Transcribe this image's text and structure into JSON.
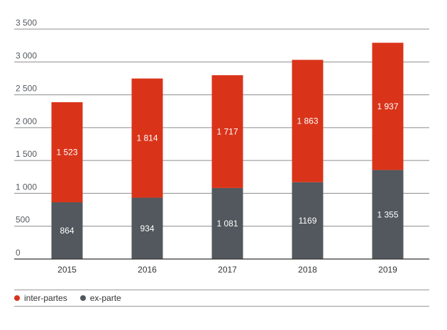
{
  "chart_data": {
    "type": "bar",
    "stacked": true,
    "categories": [
      "2015",
      "2016",
      "2017",
      "2018",
      "2019"
    ],
    "series": [
      {
        "name": "ex-parte",
        "color": "#52585e",
        "values": [
          864,
          934,
          1081,
          1169,
          1355
        ],
        "labels": [
          "864",
          "934",
          "1 081",
          "1169",
          "1 355"
        ]
      },
      {
        "name": "inter-partes",
        "color": "#d9341a",
        "values": [
          1523,
          1814,
          1717,
          1863,
          1937
        ],
        "labels": [
          "1 523",
          "1 814",
          "1 717",
          "1 863",
          "1 937"
        ]
      }
    ],
    "ylim": [
      0,
      3500
    ],
    "yticks": [
      "0",
      "500",
      "1 000",
      "1 500",
      "2 000",
      "2 500",
      "3 000",
      "3 500"
    ],
    "grid": true,
    "legend_position": "bottom"
  },
  "legend": [
    {
      "label": "inter-partes",
      "color": "#d9341a"
    },
    {
      "label": "ex-parte",
      "color": "#52585e"
    }
  ]
}
